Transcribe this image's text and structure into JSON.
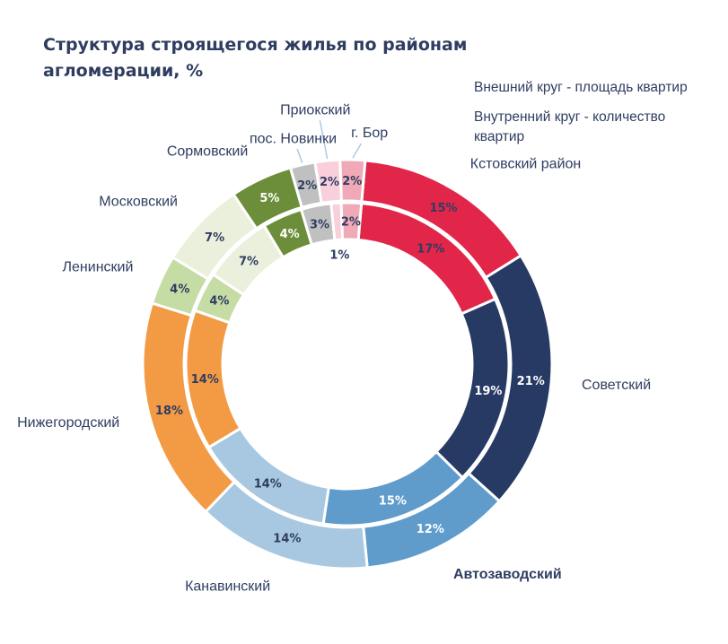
{
  "chart_data": {
    "type": "donut",
    "title": "Структура строящегося жилья по районам агломерации, %",
    "legend": {
      "outer": "Внешний круг - площадь квартир",
      "inner": "Внутренний круг - количество квартир"
    },
    "categories": [
      "Кстовский район",
      "Советский",
      "Автозаводский",
      "Канавинский",
      "Нижегородский",
      "Ленинский",
      "Московский",
      "Сормовский",
      "пос. Новинки",
      "Приокский",
      "г. Бор"
    ],
    "series": [
      {
        "name": "Внешний круг - площадь квартир",
        "values": [
          15,
          21,
          12,
          14,
          18,
          4,
          7,
          5,
          2,
          2,
          2
        ]
      },
      {
        "name": "Внутренний круг - количество квартир",
        "values": [
          17,
          19,
          15,
          14,
          14,
          4,
          7,
          4,
          3,
          1,
          2
        ]
      }
    ],
    "colors": [
      "#e2264a",
      "#273a64",
      "#5f9ccc",
      "#a7c8e0",
      "#f39a45",
      "#c5dca4",
      "#ebf0dc",
      "#6c8e3a",
      "#c0c0c0",
      "#f9cfdc",
      "#f0a9b6"
    ],
    "label_colors": [
      "#2f3d61",
      "#ffffff",
      "#ffffff",
      "#2f3d61",
      "#2f3d61",
      "#2f3d61",
      "#2f3d61",
      "#ffffff",
      "#2f3d61",
      "#2f3d61",
      "#2f3d61"
    ]
  }
}
